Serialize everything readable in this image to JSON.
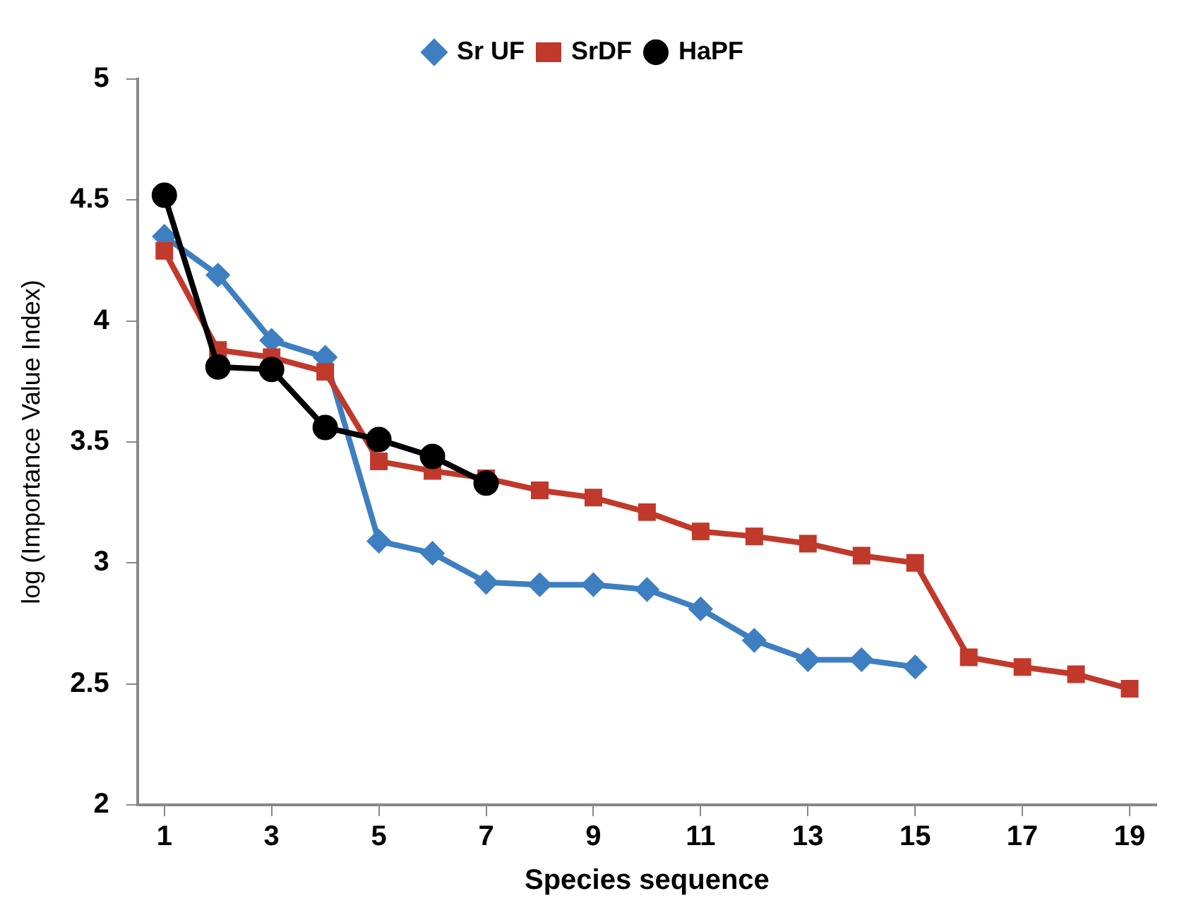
{
  "chart_data": {
    "type": "line",
    "xlabel": "Species sequence",
    "ylabel": "log (Importance Value Index)",
    "x": [
      1,
      2,
      3,
      4,
      5,
      6,
      7,
      8,
      9,
      10,
      11,
      12,
      13,
      14,
      15,
      16,
      17,
      18,
      19
    ],
    "xlim": [
      0.5,
      19.5
    ],
    "xticks": [
      1,
      3,
      5,
      7,
      9,
      11,
      13,
      15,
      17,
      19
    ],
    "ylim": [
      2,
      5
    ],
    "yticks": [
      2,
      2.5,
      3,
      3.5,
      4,
      4.5,
      5
    ],
    "grid": false,
    "legend": "top",
    "series": [
      {
        "name": "Sr UF",
        "color": "#3d7fc1",
        "marker": "diamond",
        "values": [
          4.35,
          4.19,
          3.92,
          3.85,
          3.09,
          3.04,
          2.92,
          2.91,
          2.91,
          2.89,
          2.81,
          2.68,
          2.6,
          2.6,
          2.57,
          null,
          null,
          null,
          null
        ]
      },
      {
        "name": "SrDF",
        "color": "#c0392b",
        "marker": "square",
        "values": [
          4.29,
          3.88,
          3.85,
          3.79,
          3.42,
          3.38,
          3.35,
          3.3,
          3.27,
          3.21,
          3.13,
          3.11,
          3.08,
          3.03,
          3.0,
          2.61,
          2.57,
          2.54,
          2.48
        ]
      },
      {
        "name": "HaPF",
        "color": "#000000",
        "marker": "circle",
        "values": [
          4.52,
          3.81,
          3.8,
          3.56,
          3.51,
          3.44,
          3.33,
          null,
          null,
          null,
          null,
          null,
          null,
          null,
          null,
          null,
          null,
          null,
          null
        ]
      }
    ]
  }
}
